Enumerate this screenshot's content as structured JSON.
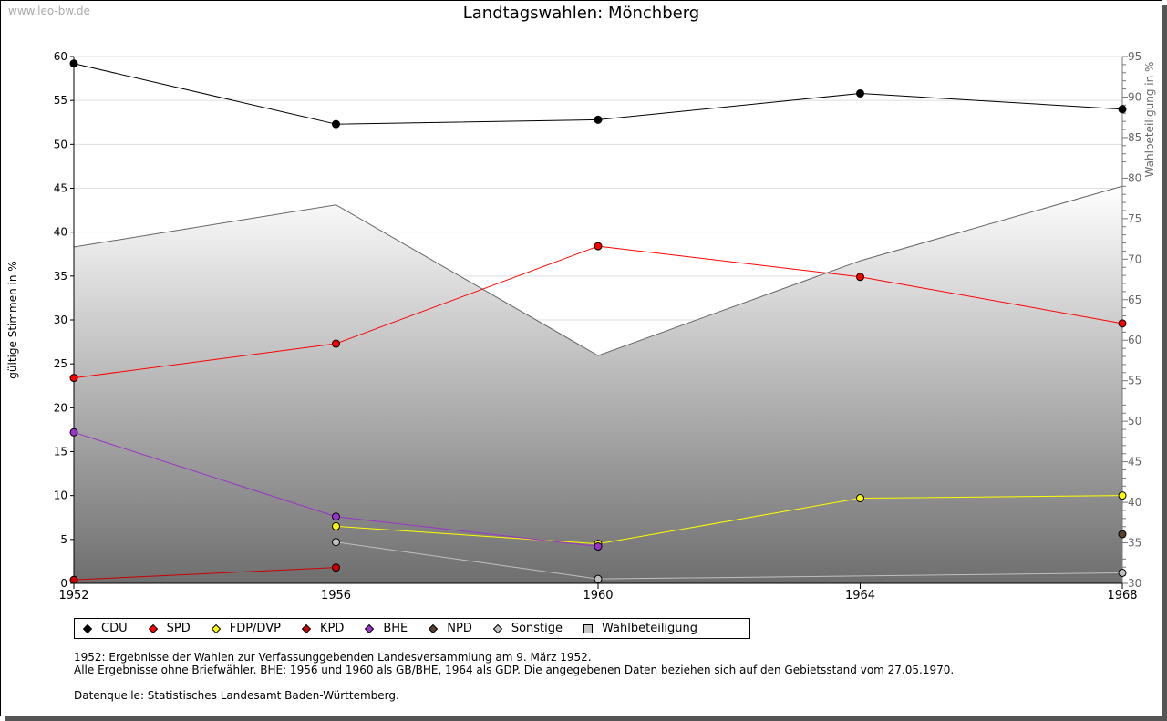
{
  "watermark": "www.leo-bw.de",
  "chart_data": {
    "type": "line",
    "title": "Landtagswahlen: Mönchberg",
    "ylabel": "gültige Stimmen in %",
    "y2label": "Wahlbeteiligung in %",
    "x": [
      1952,
      1956,
      1960,
      1964,
      1968
    ],
    "ylim": [
      0,
      60
    ],
    "y2lim": [
      30,
      95
    ],
    "yticks": [
      0,
      5,
      10,
      15,
      20,
      25,
      30,
      35,
      40,
      45,
      50,
      55,
      60
    ],
    "y2ticks": [
      30,
      35,
      40,
      45,
      50,
      55,
      60,
      65,
      70,
      75,
      80,
      85,
      90,
      95
    ],
    "grid": true,
    "legend_position": "bottom",
    "series": [
      {
        "name": "CDU",
        "color": "#000000",
        "values": [
          59.2,
          52.3,
          52.8,
          55.8,
          54.0
        ]
      },
      {
        "name": "SPD",
        "color": "#ff0000",
        "values": [
          23.4,
          27.3,
          38.4,
          34.9,
          29.6
        ]
      },
      {
        "name": "FDP/DVP",
        "color": "#ffff00",
        "values": [
          null,
          6.5,
          4.5,
          9.7,
          10.0
        ]
      },
      {
        "name": "KPD",
        "color": "#cc0000",
        "values": [
          0.4,
          1.8,
          null,
          null,
          null
        ]
      },
      {
        "name": "BHE",
        "color": "#9933cc",
        "values": [
          17.2,
          7.6,
          4.2,
          null,
          null
        ]
      },
      {
        "name": "NPD",
        "color": "#5a4030",
        "values": [
          null,
          null,
          null,
          null,
          5.6
        ]
      },
      {
        "name": "Sonstige",
        "color": "#c0c0c0",
        "values": [
          null,
          4.7,
          0.5,
          null,
          1.2
        ]
      }
    ],
    "area": {
      "name": "Wahlbeteiligung",
      "axis": "right",
      "color": "#c8c8c8",
      "values": [
        71.5,
        76.7,
        58.1,
        69.8,
        79.0
      ]
    }
  },
  "notes": [
    "1952: Ergebnisse der Wahlen zur Verfassunggebenden Landesversammlung am 9. März 1952.",
    "Alle Ergebnisse ohne Briefwähler. BHE: 1956 und 1960 als GB/BHE, 1964 als GDP. Die angegebenen Daten beziehen sich auf den Gebietsstand vom 27.05.1970.",
    "",
    "Datenquelle: Statistisches Landesamt Baden-Württemberg."
  ]
}
